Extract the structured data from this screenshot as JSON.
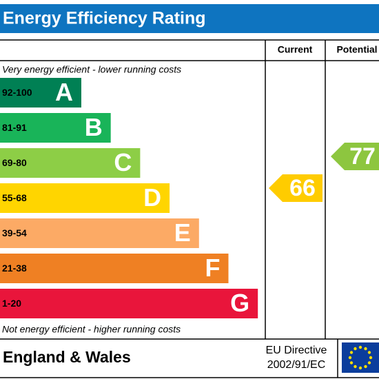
{
  "title": "Energy Efficiency Rating",
  "columns": [
    "Current",
    "Potential"
  ],
  "top_note": "Very energy efficient - lower running costs",
  "bottom_note": "Not energy efficient - higher running costs",
  "bands": [
    {
      "range": "92-100",
      "letter": "A",
      "color": "#008054"
    },
    {
      "range": "81-91",
      "letter": "B",
      "color": "#19b459"
    },
    {
      "range": "69-80",
      "letter": "C",
      "color": "#8dce46"
    },
    {
      "range": "55-68",
      "letter": "D",
      "color": "#ffd500"
    },
    {
      "range": "39-54",
      "letter": "E",
      "color": "#fcaa65"
    },
    {
      "range": "21-38",
      "letter": "F",
      "color": "#ef8023"
    },
    {
      "range": "1-20",
      "letter": "G",
      "color": "#e9153b"
    }
  ],
  "current": {
    "rating": 66,
    "color": "#ffcc00"
  },
  "potential": {
    "rating": 77,
    "color": "#8dc63f"
  },
  "footer": {
    "region": "England & Wales",
    "directive_line1": "EU Directive",
    "directive_line2": "2002/91/EC"
  }
}
